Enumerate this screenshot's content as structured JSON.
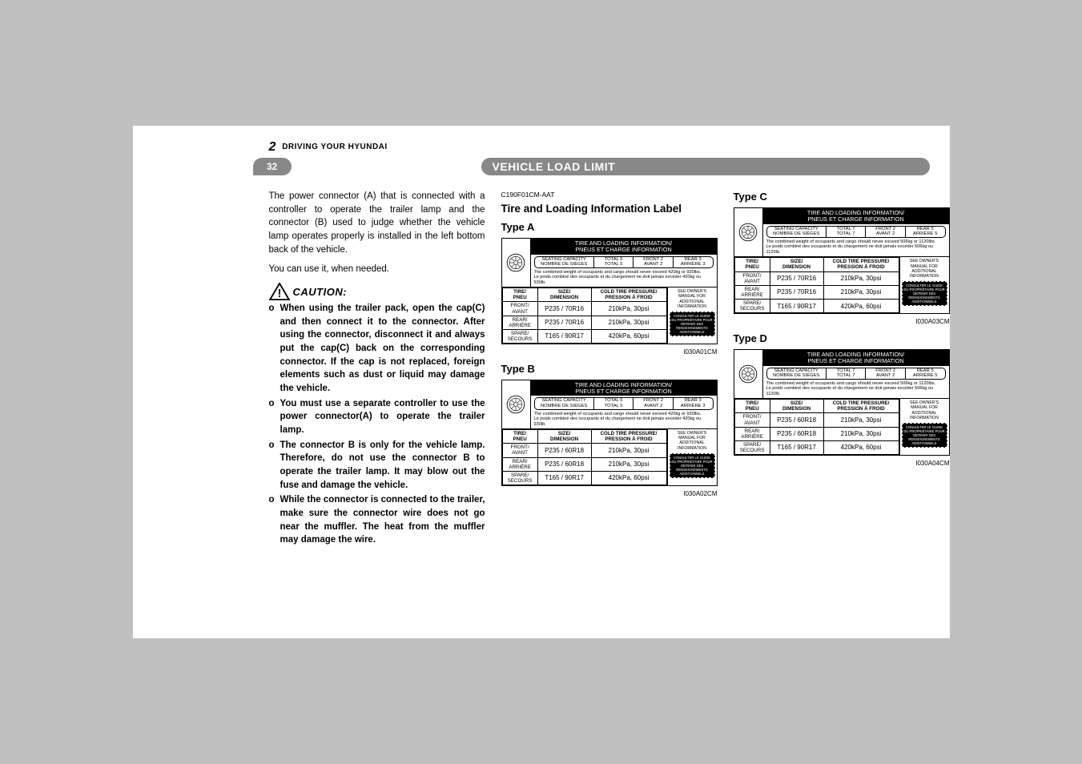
{
  "header": {
    "chapter_num": "2",
    "chapter_title": "DRIVING YOUR HYUNDAI",
    "page_num": "32",
    "section_title": "VEHICLE LOAD LIMIT"
  },
  "col1": {
    "para1": "The power connector (A) that is connected with a controller to operate the trailer lamp and the connector (B) used to judge whether the vehicle lamp operates properly is installed in the left bottom back of the vehicle.",
    "para2": "You can use it, when needed.",
    "caution_label": "CAUTION:",
    "caution": [
      "When using the trailer pack, open the cap(C) and then connect it to the connector. After using the connector, disconnect it and always put the cap(C) back on the corresponding connector. If the cap is not replaced, foreign elements such as dust or liquid may damage the vehicle.",
      "You must use a separate controller to use the power connector(A) to operate the trailer lamp.",
      "The connector B is only for the vehicle lamp. Therefore, do not use the connector B to operate the trailer lamp. It may blow out the fuse and damage the vehicle.",
      "While the connector is connected to the trailer, make sure the connector wire does not go near the muffler. The heat from the muffler may damage the wire."
    ]
  },
  "col2": {
    "code": "C190F01CM-AAT",
    "h2": "Tire and Loading Information Label",
    "typeA": "Type A",
    "typeB": "Type B",
    "figA": "I030A01CM",
    "figB": "I030A02CM"
  },
  "col3": {
    "typeC": "Type C",
    "typeD": "Type D",
    "figC": "I030A03CM",
    "figD": "I030A04CM"
  },
  "label_common": {
    "title1": "TIRE AND LOADING INFORMATION/",
    "title2": "PNEUS ET CHARGE INFORMATION",
    "seat_hdr": "SEATING CAPACITY",
    "seat_hdr_fr": "NOMBRE DE SIÈGES",
    "total": "TOTAL",
    "front": "FRONT",
    "rear": "REAR",
    "avant": "AVANT",
    "arriere": "ARRIÈRE",
    "tire_hdr": "TIRE/",
    "pneu": "PNEU",
    "size_hdr": "SIZE/",
    "dimension": "DIMENSION",
    "press_hdr": "COLD TIRE PRESSURE/",
    "press_fr": "PRESSION À FROID",
    "front_row": "FRONT/",
    "rear_row": "REAR/",
    "spare_row": "SPARE/",
    "secours": "SECOURS",
    "owners1": "SEE OWNER'S",
    "owners2": "MANUAL FOR",
    "owners3": "ADDITIONAL",
    "owners4": "INFORMATION",
    "owners_fr": "CONSULTER LE GUIDE DU PROPRIÉTAIRE POUR OBTENIR DES RENSEIGNEMENTS ADDITIONNELS"
  },
  "labelA": {
    "total": "5",
    "front": "2",
    "rear": "3",
    "weight_en": "The combined weight of occupants and cargo should never exceed 420kg or 930lbs.",
    "weight_fr": "Le poids combiné des occupants et du chargement ne doit jamais excéder 420kg ou 930lb.",
    "front_size": "P235 / 70R16",
    "front_press": "210kPa, 30psi",
    "rear_size": "P235 / 70R16",
    "rear_press": "210kPa, 30psi",
    "spare_size": "T165 / 90R17",
    "spare_press": "420kPa, 60psi"
  },
  "labelB": {
    "total": "5",
    "front": "2",
    "rear": "3",
    "weight_en": "The combined weight of occupants and cargo should never exceed 420kg or 930lbs.",
    "weight_fr": "Le poids combiné des occupants et du chargement ne doit jamais excéder 420kg ou 930lb.",
    "front_size": "P235 / 60R18",
    "front_press": "210kPa, 30psi",
    "rear_size": "P235 / 60R18",
    "rear_press": "210kPa, 30psi",
    "spare_size": "T165 / 90R17",
    "spare_press": "420kPa, 60psi"
  },
  "labelC": {
    "total": "7",
    "front": "2",
    "rear": "5",
    "weight_en": "The combined weight of occupants and cargo should never exceed 506kg or 1120lbs.",
    "weight_fr": "Le poids combiné des occupants et du chargement ne doit jamais excéder 506kg ou 1120lb.",
    "front_size": "P235 / 70R16",
    "front_press": "210kPa, 30psi",
    "rear_size": "P235 / 70R16",
    "rear_press": "210kPa, 30psi",
    "spare_size": "T165 / 90R17",
    "spare_press": "420kPa, 60psi"
  },
  "labelD": {
    "total": "7",
    "front": "2",
    "rear": "5",
    "weight_en": "The combined weight of occupants and cargo should never exceed 506kg or 1120lbs.",
    "weight_fr": "Le poids combiné des occupants et du chargement ne doit jamais excéder 506kg ou 1120lb.",
    "front_size": "P235 / 60R18",
    "front_press": "210kPa, 30psi",
    "rear_size": "P235 / 60R18",
    "rear_press": "210kPa, 30psi",
    "spare_size": "T165 / 90R17",
    "spare_press": "420kPa, 60psi"
  }
}
